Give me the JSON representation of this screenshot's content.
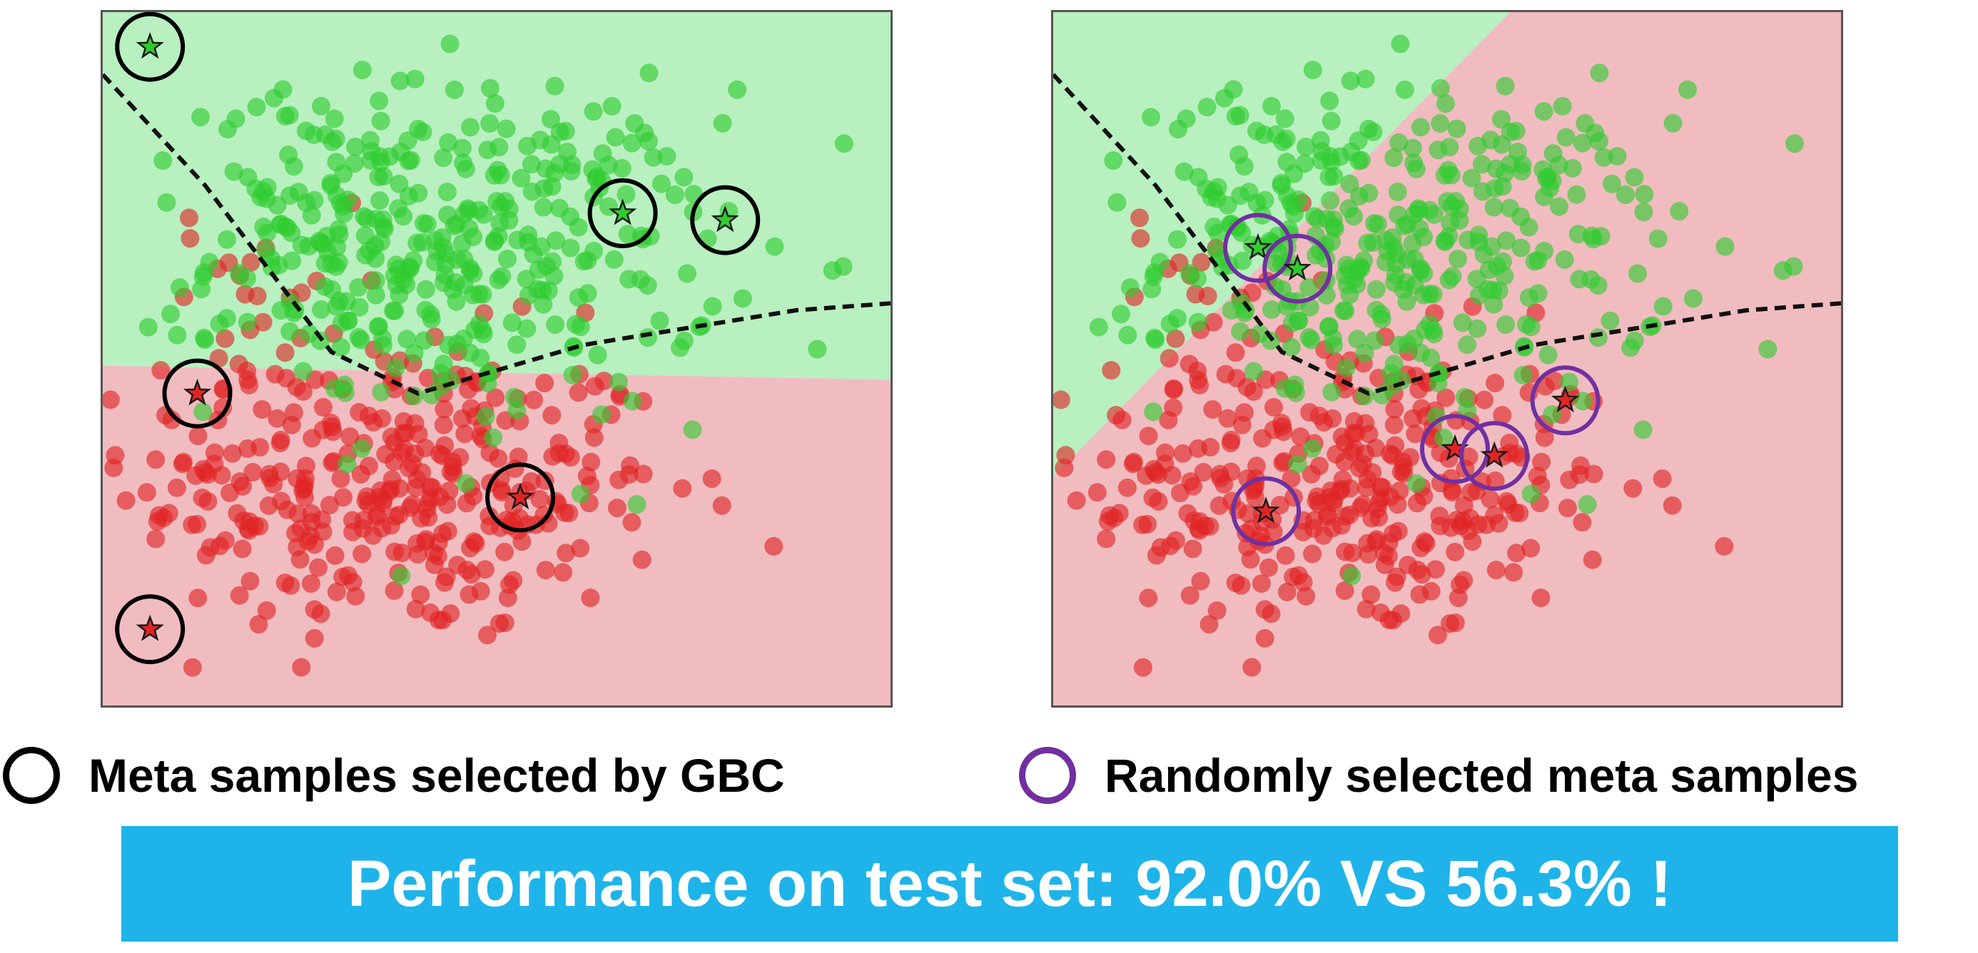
{
  "colors": {
    "green_region": "#b8f0c0",
    "red_region": "#f0bcc0",
    "green_point": "#2ecc2e",
    "red_point": "#e02424",
    "boundary": "#111111",
    "gbc_circle": "#000000",
    "random_circle": "#7030a0",
    "banner_bg": "#1eb4ea",
    "banner_text": "#ffffff"
  },
  "legend": {
    "gbc_label": "Meta samples selected by GBC",
    "random_label": "Randomly selected meta samples"
  },
  "banner": {
    "text": "Performance on test set: 92.0% VS 56.3% !"
  },
  "chart_data": [
    {
      "type": "scatter",
      "title": "",
      "xlim": [
        0,
        10
      ],
      "ylim": [
        0,
        10
      ],
      "grid": false,
      "background_regions": {
        "green": [
          [
            0,
            10
          ],
          [
            10,
            10
          ],
          [
            10,
            4.7
          ],
          [
            0,
            4.9
          ]
        ],
        "red": [
          [
            0,
            4.9
          ],
          [
            10,
            4.7
          ],
          [
            10,
            0
          ],
          [
            0,
            0
          ]
        ]
      },
      "boundary_line": [
        [
          0,
          9.1
        ],
        [
          1.3,
          7.5
        ],
        [
          2.9,
          5.1
        ],
        [
          4.0,
          4.5
        ],
        [
          6.1,
          5.2
        ],
        [
          8.8,
          5.7
        ],
        [
          10,
          5.8
        ]
      ],
      "green_clusters": [
        {
          "cx": 4.6,
          "cy": 6.5,
          "sx": 1.6,
          "sy": 1.2,
          "n": 330
        },
        {
          "cx": 2.7,
          "cy": 7.2,
          "sx": 0.8,
          "sy": 0.9,
          "n": 50
        }
      ],
      "red_clusters": [
        {
          "cx": 3.8,
          "cy": 3.1,
          "sx": 1.7,
          "sy": 1.1,
          "n": 330
        },
        {
          "cx": 2.0,
          "cy": 5.3,
          "sx": 0.6,
          "sy": 1.0,
          "n": 40
        }
      ],
      "selected_samples": [
        {
          "x": 0.6,
          "y": 9.5,
          "cls": "green"
        },
        {
          "x": 6.6,
          "y": 7.1,
          "cls": "green"
        },
        {
          "x": 7.9,
          "y": 7.0,
          "cls": "green"
        },
        {
          "x": 1.2,
          "y": 4.5,
          "cls": "red"
        },
        {
          "x": 5.3,
          "y": 3.0,
          "cls": "red"
        },
        {
          "x": 0.6,
          "y": 1.1,
          "cls": "red"
        }
      ],
      "selection_style": "gbc"
    },
    {
      "type": "scatter",
      "title": "",
      "xlim": [
        0,
        10
      ],
      "ylim": [
        0,
        10
      ],
      "grid": false,
      "background_regions": {
        "green": [
          [
            0,
            10
          ],
          [
            5.8,
            10
          ],
          [
            0,
            3.3
          ]
        ],
        "red": [
          [
            5.8,
            10
          ],
          [
            10,
            10
          ],
          [
            10,
            0
          ],
          [
            0,
            0
          ],
          [
            0,
            3.3
          ]
        ]
      },
      "boundary_line": [
        [
          0,
          9.1
        ],
        [
          1.3,
          7.5
        ],
        [
          2.9,
          5.1
        ],
        [
          4.0,
          4.5
        ],
        [
          6.1,
          5.2
        ],
        [
          8.8,
          5.7
        ],
        [
          10,
          5.8
        ]
      ],
      "green_clusters": [
        {
          "cx": 4.6,
          "cy": 6.5,
          "sx": 1.6,
          "sy": 1.2,
          "n": 330
        },
        {
          "cx": 2.7,
          "cy": 7.2,
          "sx": 0.8,
          "sy": 0.9,
          "n": 50
        }
      ],
      "red_clusters": [
        {
          "cx": 3.8,
          "cy": 3.1,
          "sx": 1.7,
          "sy": 1.1,
          "n": 330
        },
        {
          "cx": 2.0,
          "cy": 5.3,
          "sx": 0.6,
          "sy": 1.0,
          "n": 40
        }
      ],
      "selected_samples": [
        {
          "x": 2.6,
          "y": 6.6,
          "cls": "green"
        },
        {
          "x": 3.1,
          "y": 6.3,
          "cls": "green"
        },
        {
          "x": 6.5,
          "y": 4.4,
          "cls": "red"
        },
        {
          "x": 5.1,
          "y": 3.7,
          "cls": "red"
        },
        {
          "x": 5.6,
          "y": 3.6,
          "cls": "red"
        },
        {
          "x": 2.7,
          "y": 2.8,
          "cls": "red"
        }
      ],
      "selection_style": "random"
    }
  ]
}
